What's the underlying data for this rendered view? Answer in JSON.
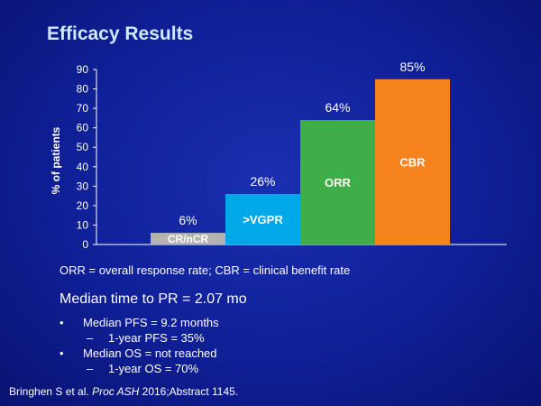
{
  "slide": {
    "title": "Efficacy Results",
    "definitions": "ORR = overall response rate; CBR = clinical benefit rate",
    "median_time": "Median time to PR = 2.07 mo",
    "bullets": [
      {
        "text": "Median PFS = 9.2 months",
        "sub": "1-year PFS = 35%"
      },
      {
        "text": "Median OS = not reached",
        "sub": "1-year OS = 70%"
      }
    ],
    "bullet_mark": "•",
    "sub_mark": "–",
    "citation": {
      "prefix": "Bringhen S et al. ",
      "journal": "Proc ASH",
      "suffix": " 2016;Abstract 1145."
    }
  },
  "chart_data": {
    "type": "bar",
    "categories": [
      "CR/nCR",
      ">VGPR",
      "ORR",
      "CBR"
    ],
    "values": [
      6,
      26,
      64,
      85
    ],
    "value_labels": [
      "6%",
      "26%",
      "64%",
      "85%"
    ],
    "colors": [
      "#b3b3b3",
      "#00a8e8",
      "#3fae49",
      "#f7831e"
    ],
    "ylabel": "% of patients",
    "ylim": [
      0,
      90
    ],
    "yticks": [
      0,
      10,
      20,
      30,
      40,
      50,
      60,
      70,
      80,
      90
    ],
    "grid": false
  }
}
